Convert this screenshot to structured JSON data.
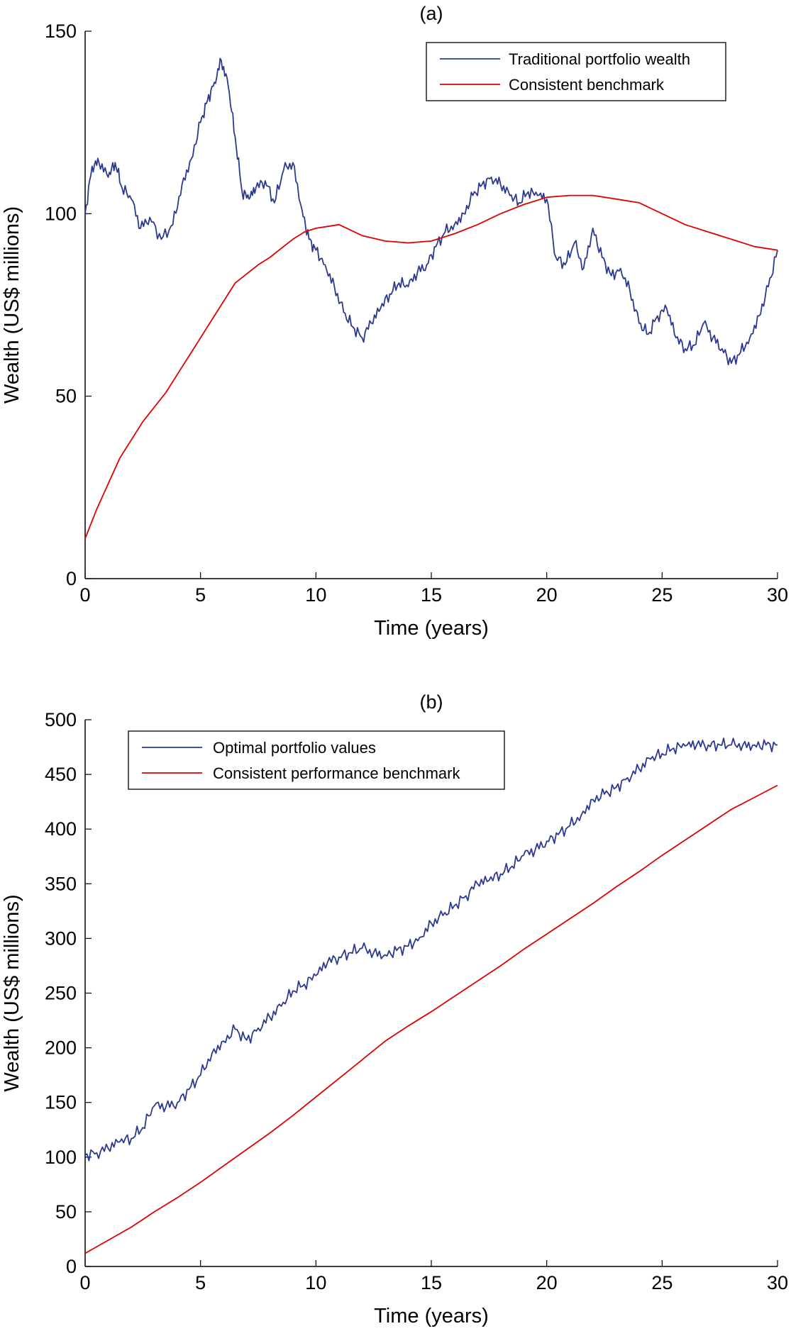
{
  "chart_data": [
    {
      "type": "line",
      "title": "(a)",
      "xlabel": "Time (years)",
      "ylabel": "Wealth (US$ millions)",
      "xlim": [
        0,
        30
      ],
      "ylim": [
        0,
        150
      ],
      "xticks": [
        0,
        5,
        10,
        15,
        20,
        25,
        30
      ],
      "yticks": [
        0,
        50,
        100,
        150
      ],
      "legend_position": "top-right",
      "series": [
        {
          "name": "Traditional portfolio wealth",
          "color": "#2b3990",
          "x": [
            0,
            0.3,
            0.6,
            1,
            1.3,
            1.6,
            2,
            2.4,
            2.8,
            3.3,
            3.8,
            4.2,
            4.6,
            5,
            5.3,
            5.6,
            5.9,
            6.2,
            6.5,
            6.8,
            7.1,
            7.4,
            7.8,
            8.2,
            8.6,
            9,
            9.4,
            9.7,
            10,
            10.4,
            10.8,
            11.2,
            11.6,
            12,
            12.4,
            12.8,
            13.2,
            13.6,
            14,
            14.4,
            14.8,
            15.2,
            15.6,
            16,
            16.4,
            16.8,
            17.2,
            17.6,
            18,
            18.4,
            18.8,
            19.2,
            19.6,
            20,
            20.4,
            20.8,
            21.2,
            21.6,
            22,
            22.4,
            22.8,
            23.2,
            23.6,
            24,
            24.4,
            24.8,
            25.2,
            25.6,
            26,
            26.4,
            26.8,
            27.2,
            27.6,
            28,
            28.4,
            28.8,
            29.2,
            29.6,
            30
          ],
          "y": [
            100,
            113,
            114,
            110,
            114,
            107,
            104,
            96,
            99,
            93,
            97,
            108,
            115,
            125,
            131,
            136,
            142,
            135,
            121,
            106,
            104,
            107,
            109,
            103,
            112,
            114,
            101,
            93,
            90,
            86,
            80,
            73,
            69,
            66,
            70,
            74,
            78,
            81,
            80,
            84,
            86,
            91,
            95,
            97,
            100,
            105,
            108,
            110,
            108,
            105,
            103,
            106,
            105,
            104,
            88,
            86,
            92,
            85,
            96,
            88,
            83,
            85,
            79,
            70,
            67,
            72,
            74,
            66,
            63,
            64,
            70,
            66,
            63,
            59,
            62,
            66,
            72,
            80,
            90
          ]
        },
        {
          "name": "Consistent benchmark",
          "color": "#e00000",
          "x": [
            0,
            0.5,
            1,
            1.5,
            2,
            2.5,
            3,
            3.5,
            4,
            4.5,
            5,
            5.5,
            6,
            6.5,
            7,
            7.5,
            8,
            8.5,
            9,
            9.5,
            10,
            11,
            12,
            13,
            14,
            15,
            16,
            17,
            18,
            19,
            20,
            21,
            22,
            23,
            24,
            25,
            26,
            27,
            28,
            29,
            30
          ],
          "y": [
            11,
            19,
            26,
            33,
            38,
            43,
            47,
            51,
            56,
            61,
            66,
            71,
            76,
            81,
            83.5,
            86,
            88,
            90.5,
            93,
            95,
            96,
            97,
            94,
            92.5,
            92,
            92.5,
            94.5,
            97,
            100,
            102.5,
            104.5,
            105,
            105,
            104,
            103,
            100,
            97,
            95,
            93,
            91,
            90
          ]
        }
      ]
    },
    {
      "type": "line",
      "title": "(b)",
      "xlabel": "Time (years)",
      "ylabel": "Wealth (US$ millions)",
      "xlim": [
        0,
        30
      ],
      "ylim": [
        0,
        500
      ],
      "xticks": [
        0,
        5,
        10,
        15,
        20,
        25,
        30
      ],
      "yticks": [
        0,
        50,
        100,
        150,
        200,
        250,
        300,
        350,
        400,
        450,
        500
      ],
      "legend_position": "top-left",
      "series": [
        {
          "name": "Optimal portfolio values",
          "color": "#2b3990",
          "x": [
            0,
            0.5,
            1,
            1.5,
            2,
            2.5,
            3,
            3.5,
            4,
            4.5,
            5,
            5.5,
            6,
            6.5,
            7,
            7.5,
            8,
            8.5,
            9,
            9.5,
            10,
            10.5,
            11,
            11.5,
            12,
            12.5,
            13,
            13.5,
            14,
            14.5,
            15,
            15.5,
            16,
            16.5,
            17,
            17.5,
            18,
            18.5,
            19,
            19.5,
            20,
            20.5,
            21,
            21.5,
            22,
            22.5,
            23,
            23.5,
            24,
            24.5,
            25,
            25.5,
            26,
            26.5,
            27,
            27.5,
            28,
            28.5,
            29,
            29.5,
            30
          ],
          "y": [
            102,
            104,
            108,
            114,
            117,
            127,
            147,
            146,
            150,
            162,
            175,
            195,
            206,
            217,
            207,
            218,
            228,
            238,
            252,
            258,
            266,
            278,
            283,
            287,
            291,
            287,
            285,
            289,
            293,
            301,
            314,
            321,
            330,
            339,
            350,
            353,
            359,
            366,
            376,
            381,
            389,
            395,
            403,
            413,
            427,
            432,
            438,
            447,
            455,
            464,
            469,
            474,
            476,
            477,
            477,
            477,
            477,
            477,
            477,
            477,
            477
          ]
        },
        {
          "name": "Consistent performance benchmark",
          "color": "#e00000",
          "x": [
            0,
            1,
            2,
            3,
            4,
            5,
            6,
            7,
            8,
            9,
            10,
            11,
            12,
            13,
            14,
            15,
            16,
            17,
            18,
            19,
            20,
            21,
            22,
            23,
            24,
            25,
            26,
            27,
            28,
            29,
            30
          ],
          "y": [
            12,
            24,
            36,
            50,
            63,
            77,
            92,
            107,
            122,
            138,
            155,
            172,
            189,
            206,
            220,
            233,
            247,
            261,
            275,
            290,
            304,
            318,
            332,
            347,
            361,
            376,
            390,
            404,
            418,
            429,
            440
          ]
        }
      ]
    }
  ]
}
